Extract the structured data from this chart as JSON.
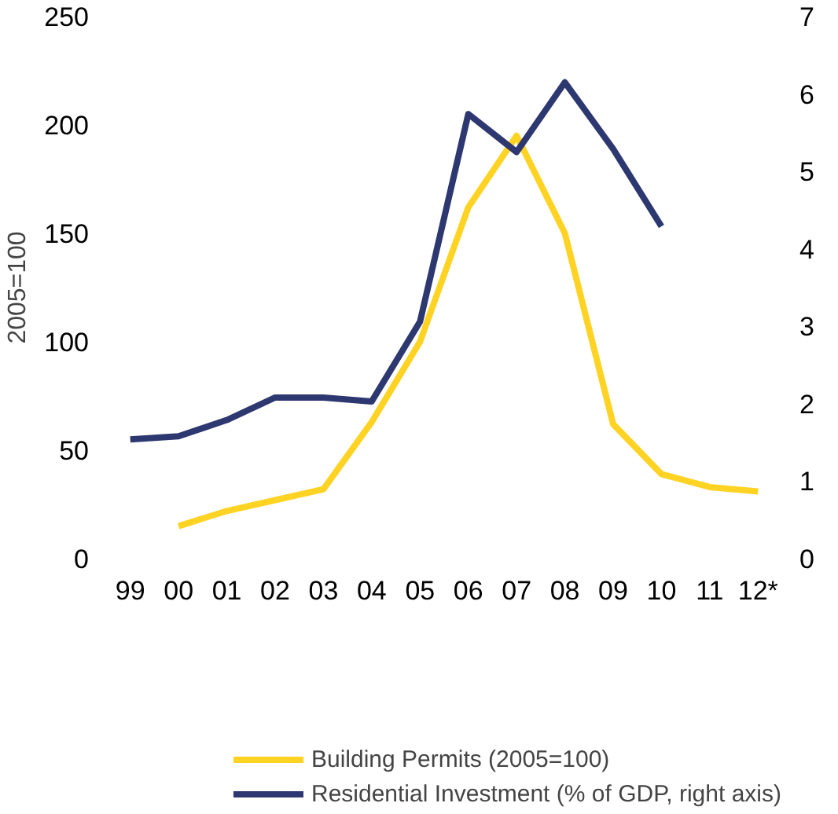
{
  "chart_data": {
    "type": "line",
    "ylabel": "2005=100",
    "categories": [
      "99",
      "00",
      "01",
      "02",
      "03",
      "04",
      "05",
      "06",
      "07",
      "08",
      "09",
      "10",
      "11",
      "12*"
    ],
    "series": [
      {
        "name": "Building Permits (2005=100)",
        "color": "#ffd324",
        "values": [
          null,
          15,
          22,
          27,
          32,
          63,
          100,
          162,
          195,
          150,
          62,
          39,
          33,
          31
        ]
      },
      {
        "name": "Residential Investment (% of GDP, right axis)",
        "color": "#2e3870",
        "axis": "y2",
        "values": [
          1.54,
          1.58,
          1.79,
          2.08,
          2.08,
          2.03,
          3.06,
          5.74,
          5.25,
          6.15,
          5.29,
          4.29,
          null,
          null
        ]
      }
    ],
    "ylim": [
      0,
      250
    ],
    "yticks": [
      0,
      50,
      100,
      150,
      200,
      250
    ],
    "y2lim": [
      0,
      7
    ],
    "y2ticks": [
      0,
      1,
      2,
      3,
      4,
      5,
      6,
      7
    ],
    "grid": false,
    "legend": "bottom",
    "marker": "none",
    "line_style": "solid"
  }
}
